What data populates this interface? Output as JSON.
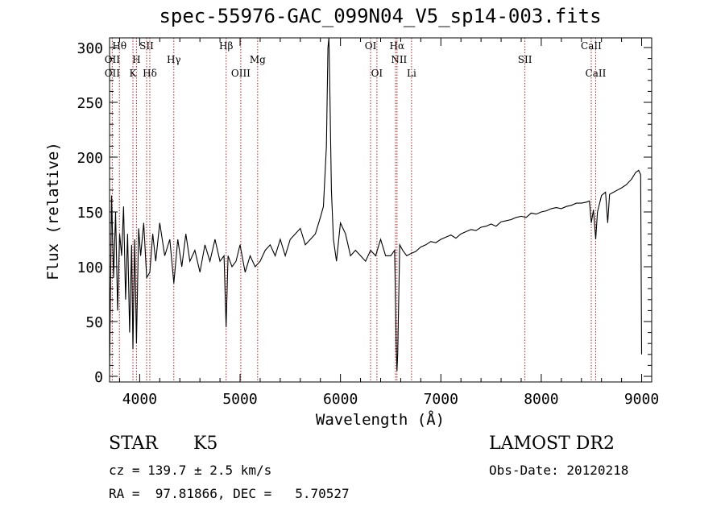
{
  "chart_data": {
    "type": "line",
    "title": "spec-55976-GAC_099N04_V5_sp14-003.fits",
    "xlabel": "Wavelength (Å)",
    "ylabel": "Flux (relative)",
    "xlim": [
      3700,
      9100
    ],
    "ylim": [
      0,
      310
    ],
    "xticks": [
      4000,
      5000,
      6000,
      7000,
      8000,
      9000
    ],
    "yticks": [
      0,
      50,
      100,
      150,
      200,
      250,
      300
    ],
    "grid": false,
    "series": [
      {
        "color": "#000000",
        "x": [
          3700,
          3720,
          3740,
          3760,
          3780,
          3800,
          3820,
          3840,
          3860,
          3880,
          3900,
          3920,
          3933,
          3950,
          3968,
          3990,
          4010,
          4040,
          4070,
          4101,
          4130,
          4160,
          4200,
          4250,
          4300,
          4340,
          4380,
          4420,
          4460,
          4500,
          4550,
          4600,
          4650,
          4700,
          4750,
          4800,
          4840,
          4861,
          4880,
          4920,
          4960,
          5000,
          5050,
          5100,
          5150,
          5200,
          5250,
          5300,
          5350,
          5400,
          5450,
          5500,
          5550,
          5600,
          5650,
          5700,
          5750,
          5800,
          5830,
          5860,
          5875,
          5885,
          5895,
          5910,
          5930,
          5960,
          6000,
          6050,
          6100,
          6150,
          6200,
          6250,
          6300,
          6350,
          6400,
          6450,
          6500,
          6540,
          6555,
          6563,
          6570,
          6590,
          6620,
          6660,
          6700,
          6750,
          6800,
          6850,
          6900,
          6950,
          7000,
          7050,
          7100,
          7150,
          7200,
          7250,
          7300,
          7350,
          7400,
          7450,
          7500,
          7550,
          7600,
          7650,
          7700,
          7750,
          7800,
          7850,
          7900,
          7950,
          8000,
          8050,
          8100,
          8150,
          8200,
          8250,
          8300,
          8350,
          8400,
          8450,
          8480,
          8498,
          8520,
          8542,
          8560,
          8600,
          8640,
          8662,
          8680,
          8720,
          8760,
          8800,
          8850,
          8900,
          8940,
          8970,
          8990,
          9000
        ],
        "y": [
          5,
          165,
          90,
          150,
          60,
          130,
          110,
          155,
          70,
          130,
          40,
          120,
          25,
          125,
          30,
          135,
          110,
          140,
          90,
          95,
          130,
          105,
          140,
          110,
          125,
          85,
          125,
          100,
          130,
          105,
          115,
          95,
          120,
          105,
          125,
          105,
          110,
          45,
          110,
          100,
          105,
          120,
          95,
          110,
          100,
          105,
          115,
          120,
          110,
          125,
          110,
          125,
          130,
          135,
          120,
          125,
          130,
          145,
          155,
          210,
          300,
          310,
          255,
          170,
          125,
          105,
          140,
          130,
          110,
          115,
          110,
          105,
          115,
          110,
          125,
          110,
          110,
          115,
          30,
          5,
          20,
          120,
          115,
          110,
          112,
          114,
          118,
          120,
          123,
          122,
          125,
          127,
          129,
          126,
          130,
          132,
          134,
          133,
          136,
          137,
          139,
          137,
          141,
          142,
          143,
          145,
          146,
          145,
          149,
          148,
          150,
          151,
          153,
          154,
          153,
          155,
          156,
          158,
          158,
          159,
          160,
          140,
          152,
          125,
          150,
          165,
          168,
          140,
          166,
          168,
          170,
          172,
          175,
          180,
          186,
          188,
          184,
          20
        ]
      }
    ],
    "annotations": [
      {
        "label": "Hθ",
        "x": 3798,
        "row": 1
      },
      {
        "label": "OII",
        "x": 3727,
        "row": 2
      },
      {
        "label": "OII",
        "x": 3727,
        "row": 3
      },
      {
        "label": "H",
        "x": 3968,
        "row": 2
      },
      {
        "label": "K",
        "x": 3933,
        "row": 3
      },
      {
        "label": "SII",
        "x": 4069,
        "row": 1
      },
      {
        "label": "Hδ",
        "x": 4101,
        "row": 3
      },
      {
        "label": "Hγ",
        "x": 4340,
        "row": 2
      },
      {
        "label": "Hβ",
        "x": 4861,
        "row": 1
      },
      {
        "label": "OIII",
        "x": 5007,
        "row": 3
      },
      {
        "label": "Mg",
        "x": 5175,
        "row": 2
      },
      {
        "label": "OI",
        "x": 6300,
        "row": 1
      },
      {
        "label": "OI",
        "x": 6363,
        "row": 3
      },
      {
        "label": "Hα",
        "x": 6563,
        "row": 1
      },
      {
        "label": "NII",
        "x": 6583,
        "row": 2
      },
      {
        "label": "Li",
        "x": 6708,
        "row": 3
      },
      {
        "label": "SII",
        "x": 7837,
        "row": 2
      },
      {
        "label": "CaII",
        "x": 8498,
        "row": 1
      },
      {
        "label": "CaII",
        "x": 8542,
        "row": 3
      }
    ],
    "line_markers": [
      3727,
      3798,
      3933,
      3968,
      4069,
      4101,
      4340,
      4861,
      5007,
      5175,
      6300,
      6363,
      6548,
      6563,
      6708,
      7837,
      8498,
      8542
    ]
  },
  "info": {
    "class": "STAR",
    "subclass": "K5",
    "survey": "LAMOST DR2",
    "cz": "cz = 139.7 ± 2.5 km/s",
    "obsdate": "Obs-Date: 20120218",
    "radec": "RA =  97.81866, DEC =   5.70527"
  }
}
